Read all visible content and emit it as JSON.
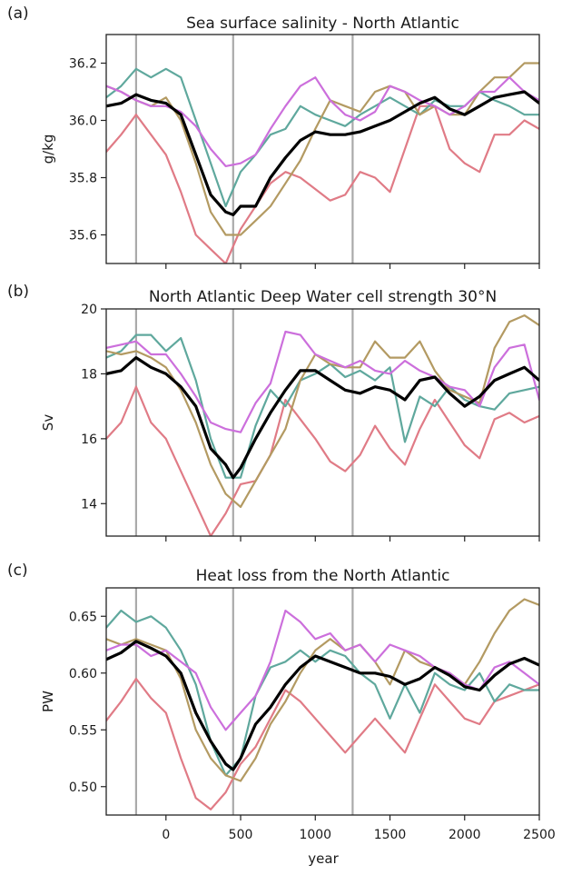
{
  "figure": {
    "x_label": "year",
    "x_ticks": [
      0,
      500,
      1000,
      1500,
      2000,
      2500
    ]
  },
  "colors": {
    "red": "#e07b86",
    "teal": "#5fa89d",
    "gold": "#b39a62",
    "magenta": "#cc6fdc",
    "black": "#000000",
    "vline": "#aaaaaa"
  },
  "chart_data": [
    {
      "type": "line",
      "label": "(a)",
      "title": "Sea surface salinity - North Atlantic",
      "ylabel": "g/kg",
      "xlim": [
        -400,
        2500
      ],
      "ylim": [
        35.5,
        36.3
      ],
      "yticks": [
        35.6,
        35.8,
        36.0,
        36.2
      ],
      "ytick_labels": [
        "35.6",
        "35.8",
        "36.0",
        "36.2"
      ],
      "vlines": [
        -200,
        450,
        1250
      ],
      "grid": false,
      "series": [
        {
          "color": "red",
          "x": [
            -400,
            -300,
            -200,
            -100,
            0,
            100,
            200,
            300,
            400,
            500,
            600,
            700,
            800,
            900,
            1000,
            1100,
            1200,
            1300,
            1400,
            1500,
            1600,
            1700,
            1800,
            1900,
            2000,
            2100,
            2200,
            2300,
            2400,
            2500
          ],
          "y": [
            35.89,
            35.95,
            36.02,
            35.95,
            35.88,
            35.75,
            35.6,
            35.55,
            35.5,
            35.62,
            35.7,
            35.78,
            35.82,
            35.8,
            35.76,
            35.72,
            35.74,
            35.82,
            35.8,
            35.75,
            35.9,
            36.05,
            36.05,
            35.9,
            35.85,
            35.82,
            35.95,
            35.95,
            36.0,
            35.97
          ]
        },
        {
          "color": "teal",
          "x": [
            -400,
            -300,
            -200,
            -100,
            0,
            100,
            200,
            300,
            400,
            500,
            600,
            700,
            800,
            900,
            1000,
            1100,
            1200,
            1300,
            1400,
            1500,
            1600,
            1700,
            1800,
            1900,
            2000,
            2100,
            2200,
            2300,
            2400,
            2500
          ],
          "y": [
            36.08,
            36.12,
            36.18,
            36.15,
            36.18,
            36.15,
            36.0,
            35.85,
            35.7,
            35.82,
            35.88,
            35.95,
            35.97,
            36.05,
            36.02,
            36.0,
            35.98,
            36.02,
            36.05,
            36.08,
            36.05,
            36.02,
            36.07,
            36.05,
            36.05,
            36.1,
            36.07,
            36.05,
            36.02,
            36.02
          ]
        },
        {
          "color": "gold",
          "x": [
            -400,
            -300,
            -200,
            -100,
            0,
            100,
            200,
            300,
            400,
            500,
            600,
            700,
            800,
            900,
            1000,
            1100,
            1200,
            1300,
            1400,
            1500,
            1600,
            1700,
            1800,
            1900,
            2000,
            2100,
            2200,
            2300,
            2400,
            2500
          ],
          "y": [
            36.12,
            36.1,
            36.07,
            36.05,
            36.08,
            36.0,
            35.85,
            35.68,
            35.6,
            35.6,
            35.65,
            35.7,
            35.78,
            35.86,
            35.97,
            36.07,
            36.05,
            36.03,
            36.1,
            36.12,
            36.1,
            36.02,
            36.05,
            36.02,
            36.02,
            36.1,
            36.15,
            36.15,
            36.2,
            36.2
          ]
        },
        {
          "color": "magenta",
          "x": [
            -400,
            -300,
            -200,
            -100,
            0,
            100,
            200,
            300,
            400,
            500,
            600,
            700,
            800,
            900,
            1000,
            1100,
            1200,
            1300,
            1400,
            1500,
            1600,
            1700,
            1800,
            1900,
            2000,
            2100,
            2200,
            2300,
            2400,
            2500
          ],
          "y": [
            36.12,
            36.1,
            36.07,
            36.05,
            36.05,
            36.03,
            35.98,
            35.9,
            35.84,
            35.85,
            35.88,
            35.97,
            36.05,
            36.12,
            36.15,
            36.07,
            36.02,
            36.0,
            36.03,
            36.12,
            36.1,
            36.07,
            36.05,
            36.02,
            36.05,
            36.1,
            36.1,
            36.15,
            36.1,
            36.07
          ]
        },
        {
          "color": "black",
          "x": [
            -400,
            -300,
            -200,
            -100,
            0,
            100,
            200,
            300,
            400,
            450,
            500,
            600,
            700,
            800,
            900,
            1000,
            1100,
            1200,
            1300,
            1400,
            1500,
            1600,
            1700,
            1800,
            1900,
            2000,
            2100,
            2200,
            2300,
            2400,
            2500
          ],
          "y": [
            36.05,
            36.06,
            36.09,
            36.07,
            36.06,
            36.02,
            35.88,
            35.74,
            35.68,
            35.67,
            35.7,
            35.7,
            35.8,
            35.87,
            35.93,
            35.96,
            35.95,
            35.95,
            35.96,
            35.98,
            36.0,
            36.03,
            36.06,
            36.08,
            36.04,
            36.02,
            36.05,
            36.08,
            36.09,
            36.1,
            36.06
          ],
          "width": 3.2
        }
      ]
    },
    {
      "type": "line",
      "label": "(b)",
      "title": "North Atlantic Deep Water cell strength 30°N",
      "ylabel": "Sv",
      "xlim": [
        -400,
        2500
      ],
      "ylim": [
        13,
        20
      ],
      "yticks": [
        14,
        16,
        18,
        20
      ],
      "ytick_labels": [
        "14",
        "16",
        "18",
        "20"
      ],
      "vlines": [
        -200,
        450,
        1250
      ],
      "grid": false,
      "series": [
        {
          "color": "red",
          "x": [
            -400,
            -300,
            -200,
            -100,
            0,
            100,
            200,
            300,
            400,
            500,
            600,
            700,
            800,
            900,
            1000,
            1100,
            1200,
            1300,
            1400,
            1500,
            1600,
            1700,
            1800,
            1900,
            2000,
            2100,
            2200,
            2300,
            2400,
            2500
          ],
          "y": [
            16.0,
            16.5,
            17.6,
            16.5,
            16.0,
            15.0,
            14.0,
            13.0,
            13.7,
            14.6,
            14.7,
            15.5,
            17.2,
            16.6,
            16.0,
            15.3,
            15.0,
            15.5,
            16.4,
            15.7,
            15.2,
            16.3,
            17.2,
            16.5,
            15.8,
            15.4,
            16.6,
            16.8,
            16.5,
            16.7
          ]
        },
        {
          "color": "teal",
          "x": [
            -400,
            -300,
            -200,
            -100,
            0,
            100,
            200,
            300,
            400,
            500,
            600,
            700,
            800,
            900,
            1000,
            1100,
            1200,
            1300,
            1400,
            1500,
            1600,
            1700,
            1800,
            1900,
            2000,
            2100,
            2200,
            2300,
            2400,
            2500
          ],
          "y": [
            18.5,
            18.7,
            19.2,
            19.2,
            18.7,
            19.1,
            17.8,
            16.0,
            14.8,
            14.8,
            16.4,
            17.5,
            17.0,
            17.8,
            18.0,
            18.3,
            17.9,
            18.1,
            17.8,
            18.2,
            15.9,
            17.3,
            17.0,
            17.6,
            17.2,
            17.0,
            16.9,
            17.4,
            17.5,
            17.6
          ]
        },
        {
          "color": "gold",
          "x": [
            -400,
            -300,
            -200,
            -100,
            0,
            100,
            200,
            300,
            400,
            500,
            600,
            700,
            800,
            900,
            1000,
            1100,
            1200,
            1300,
            1400,
            1500,
            1600,
            1700,
            1800,
            1900,
            2000,
            2100,
            2200,
            2300,
            2400,
            2500
          ],
          "y": [
            18.7,
            18.6,
            18.7,
            18.5,
            18.2,
            17.5,
            16.5,
            15.2,
            14.3,
            13.9,
            14.7,
            15.5,
            16.3,
            17.8,
            18.6,
            18.3,
            18.2,
            18.2,
            19.0,
            18.5,
            18.5,
            19.0,
            18.1,
            17.5,
            17.3,
            17.1,
            18.8,
            19.6,
            19.8,
            19.5
          ]
        },
        {
          "color": "magenta",
          "x": [
            -400,
            -300,
            -200,
            -100,
            0,
            100,
            200,
            300,
            400,
            500,
            600,
            700,
            800,
            900,
            1000,
            1100,
            1200,
            1300,
            1400,
            1500,
            1600,
            1700,
            1800,
            1900,
            2000,
            2100,
            2200,
            2300,
            2400,
            2500
          ],
          "y": [
            18.8,
            18.9,
            19.0,
            18.6,
            18.6,
            18.0,
            17.3,
            16.5,
            16.3,
            16.2,
            17.1,
            17.7,
            19.3,
            19.2,
            18.6,
            18.4,
            18.2,
            18.4,
            18.1,
            18.0,
            18.4,
            18.1,
            17.9,
            17.6,
            17.5,
            17.0,
            18.2,
            18.8,
            18.9,
            17.2
          ]
        },
        {
          "color": "black",
          "x": [
            -400,
            -300,
            -200,
            -100,
            0,
            100,
            200,
            300,
            400,
            450,
            500,
            600,
            700,
            800,
            900,
            1000,
            1100,
            1200,
            1300,
            1400,
            1500,
            1600,
            1700,
            1800,
            1900,
            2000,
            2100,
            2200,
            2300,
            2400,
            2500
          ],
          "y": [
            18.0,
            18.1,
            18.5,
            18.2,
            18.0,
            17.6,
            17.0,
            15.7,
            15.2,
            14.8,
            15.1,
            16.0,
            16.8,
            17.5,
            18.1,
            18.1,
            17.8,
            17.5,
            17.4,
            17.6,
            17.5,
            17.2,
            17.8,
            17.9,
            17.4,
            17.0,
            17.3,
            17.8,
            18.0,
            18.2,
            17.8
          ],
          "width": 3.2
        }
      ]
    },
    {
      "type": "line",
      "label": "(c)",
      "title": "Heat loss from the North Atlantic",
      "ylabel": "PW",
      "xlim": [
        -400,
        2500
      ],
      "ylim": [
        0.475,
        0.675
      ],
      "yticks": [
        0.5,
        0.55,
        0.6,
        0.65
      ],
      "ytick_labels": [
        "0.50",
        "0.55",
        "0.60",
        "0.65"
      ],
      "vlines": [
        -200,
        450,
        1250
      ],
      "grid": false,
      "series": [
        {
          "color": "red",
          "x": [
            -400,
            -300,
            -200,
            -100,
            0,
            100,
            200,
            300,
            400,
            500,
            600,
            700,
            800,
            900,
            1000,
            1100,
            1200,
            1300,
            1400,
            1500,
            1600,
            1700,
            1800,
            1900,
            2000,
            2100,
            2200,
            2300,
            2400,
            2500
          ],
          "y": [
            0.558,
            0.575,
            0.595,
            0.578,
            0.565,
            0.525,
            0.49,
            0.48,
            0.495,
            0.52,
            0.535,
            0.56,
            0.585,
            0.575,
            0.56,
            0.545,
            0.53,
            0.545,
            0.56,
            0.545,
            0.53,
            0.56,
            0.59,
            0.575,
            0.56,
            0.555,
            0.575,
            0.58,
            0.585,
            0.59
          ]
        },
        {
          "color": "teal",
          "x": [
            -400,
            -300,
            -200,
            -100,
            0,
            100,
            200,
            300,
            400,
            500,
            600,
            700,
            800,
            900,
            1000,
            1100,
            1200,
            1300,
            1400,
            1500,
            1600,
            1700,
            1800,
            1900,
            2000,
            2100,
            2200,
            2300,
            2400,
            2500
          ],
          "y": [
            0.64,
            0.655,
            0.645,
            0.65,
            0.64,
            0.62,
            0.59,
            0.54,
            0.51,
            0.525,
            0.58,
            0.605,
            0.61,
            0.62,
            0.61,
            0.62,
            0.615,
            0.6,
            0.59,
            0.56,
            0.59,
            0.565,
            0.6,
            0.59,
            0.585,
            0.6,
            0.575,
            0.59,
            0.585,
            0.585
          ]
        },
        {
          "color": "gold",
          "x": [
            -400,
            -300,
            -200,
            -100,
            0,
            100,
            200,
            300,
            400,
            500,
            600,
            700,
            800,
            900,
            1000,
            1100,
            1200,
            1300,
            1400,
            1500,
            1600,
            1700,
            1800,
            1900,
            2000,
            2100,
            2200,
            2300,
            2400,
            2500
          ],
          "y": [
            0.63,
            0.625,
            0.63,
            0.625,
            0.62,
            0.595,
            0.55,
            0.525,
            0.51,
            0.505,
            0.525,
            0.555,
            0.575,
            0.6,
            0.62,
            0.63,
            0.62,
            0.625,
            0.61,
            0.59,
            0.62,
            0.61,
            0.605,
            0.6,
            0.59,
            0.61,
            0.635,
            0.655,
            0.665,
            0.66
          ]
        },
        {
          "color": "magenta",
          "x": [
            -400,
            -300,
            -200,
            -100,
            0,
            100,
            200,
            300,
            400,
            500,
            600,
            700,
            800,
            900,
            1000,
            1100,
            1200,
            1300,
            1400,
            1500,
            1600,
            1700,
            1800,
            1900,
            2000,
            2100,
            2200,
            2300,
            2400,
            2500
          ],
          "y": [
            0.62,
            0.625,
            0.625,
            0.615,
            0.62,
            0.61,
            0.6,
            0.57,
            0.55,
            0.565,
            0.58,
            0.61,
            0.655,
            0.645,
            0.63,
            0.635,
            0.62,
            0.625,
            0.61,
            0.625,
            0.62,
            0.615,
            0.605,
            0.6,
            0.59,
            0.585,
            0.605,
            0.61,
            0.6,
            0.59
          ]
        },
        {
          "color": "black",
          "x": [
            -400,
            -300,
            -200,
            -100,
            0,
            100,
            200,
            300,
            400,
            450,
            500,
            600,
            700,
            800,
            900,
            1000,
            1100,
            1200,
            1300,
            1400,
            1500,
            1600,
            1700,
            1800,
            1900,
            2000,
            2100,
            2200,
            2300,
            2400,
            2500
          ],
          "y": [
            0.612,
            0.618,
            0.628,
            0.622,
            0.615,
            0.6,
            0.565,
            0.54,
            0.52,
            0.515,
            0.525,
            0.555,
            0.57,
            0.59,
            0.605,
            0.615,
            0.61,
            0.605,
            0.6,
            0.6,
            0.597,
            0.59,
            0.595,
            0.605,
            0.598,
            0.588,
            0.585,
            0.598,
            0.608,
            0.613,
            0.607
          ],
          "width": 3.2
        }
      ]
    }
  ]
}
